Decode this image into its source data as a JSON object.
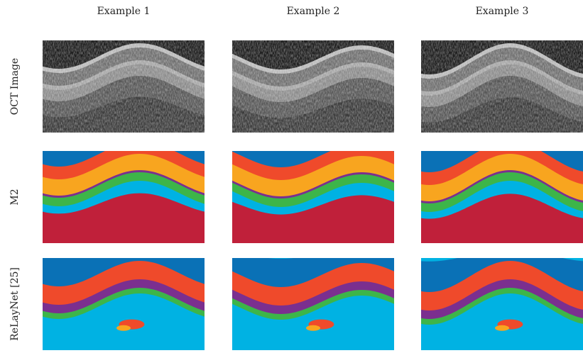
{
  "columns": [
    "Example 1",
    "Example 2",
    "Example 3"
  ],
  "rows": [
    "OCT Image",
    "M2",
    "ReLayNet [25]"
  ]
}
